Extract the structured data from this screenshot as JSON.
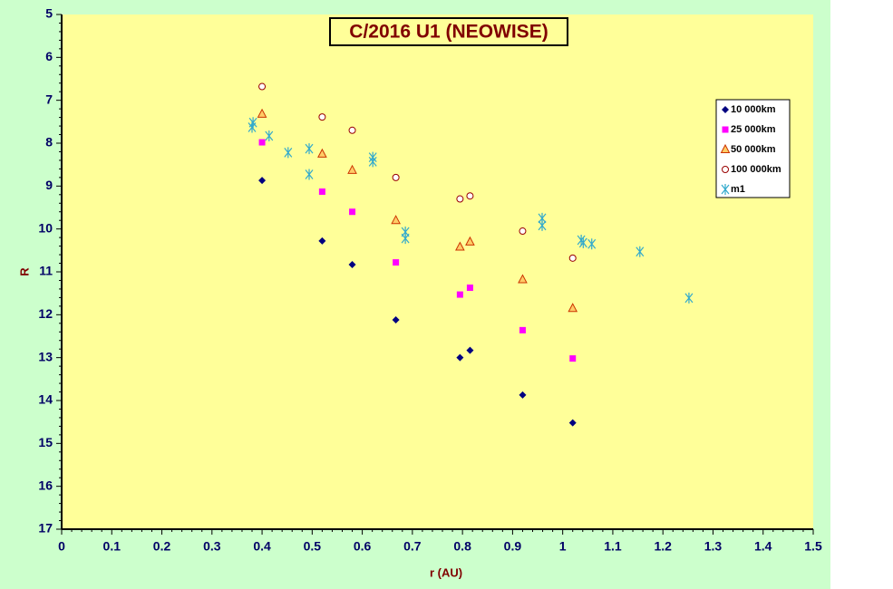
{
  "chart_data": {
    "type": "scatter",
    "title": "C/2016 U1 (NEOWISE)",
    "x_label": "r (AU)",
    "y_label": "R",
    "xlim": [
      0,
      1.5
    ],
    "xticks": [
      0,
      0.1,
      0.2,
      0.3,
      0.4,
      0.5,
      0.6,
      0.7,
      0.8,
      0.9,
      1,
      1.1,
      1.2,
      1.3,
      1.4,
      1.5
    ],
    "ylim": [
      17,
      5
    ],
    "yticks": [
      5,
      6,
      7,
      8,
      9,
      10,
      11,
      12,
      13,
      14,
      15,
      16,
      17
    ],
    "grid": false,
    "legend": "upper right",
    "series": [
      {
        "name": "10 000km",
        "color": "#000080",
        "marker": "diamond",
        "x": [
          0.4,
          0.52,
          0.58,
          0.667,
          0.795,
          0.815,
          0.92,
          1.02
        ],
        "values": [
          8.87,
          10.28,
          10.83,
          12.12,
          13.0,
          12.83,
          13.87,
          14.52
        ]
      },
      {
        "name": "25 000km",
        "color": "#ff00ff",
        "marker": "square",
        "x": [
          0.4,
          0.52,
          0.58,
          0.667,
          0.795,
          0.815,
          0.92,
          1.02
        ],
        "values": [
          7.98,
          9.13,
          9.6,
          10.78,
          11.53,
          11.37,
          12.36,
          13.02
        ]
      },
      {
        "name": "50 000km",
        "color": "#cc3300",
        "marker": "triangle",
        "x": [
          0.4,
          0.52,
          0.58,
          0.667,
          0.795,
          0.815,
          0.92,
          1.02
        ],
        "values": [
          7.32,
          8.25,
          8.63,
          9.8,
          10.42,
          10.3,
          11.18,
          11.85
        ]
      },
      {
        "name": "100 000km",
        "color": "#990000",
        "marker": "circle",
        "x": [
          0.4,
          0.52,
          0.58,
          0.667,
          0.795,
          0.815,
          0.92,
          1.02
        ],
        "values": [
          6.68,
          7.39,
          7.7,
          8.8,
          9.3,
          9.23,
          10.05,
          10.68
        ]
      },
      {
        "name": "m1",
        "color": "#33aacc",
        "marker": "star",
        "x": [
          0.38,
          0.382,
          0.414,
          0.452,
          0.494,
          0.494,
          0.621,
          0.621,
          0.686,
          0.686,
          0.959,
          0.959,
          1.037,
          1.041,
          1.058,
          1.154,
          1.252
        ],
        "values": [
          7.63,
          7.52,
          7.83,
          8.22,
          8.13,
          8.73,
          8.33,
          8.43,
          10.07,
          10.22,
          9.75,
          9.92,
          10.26,
          10.32,
          10.35,
          10.53,
          11.61
        ]
      }
    ]
  }
}
